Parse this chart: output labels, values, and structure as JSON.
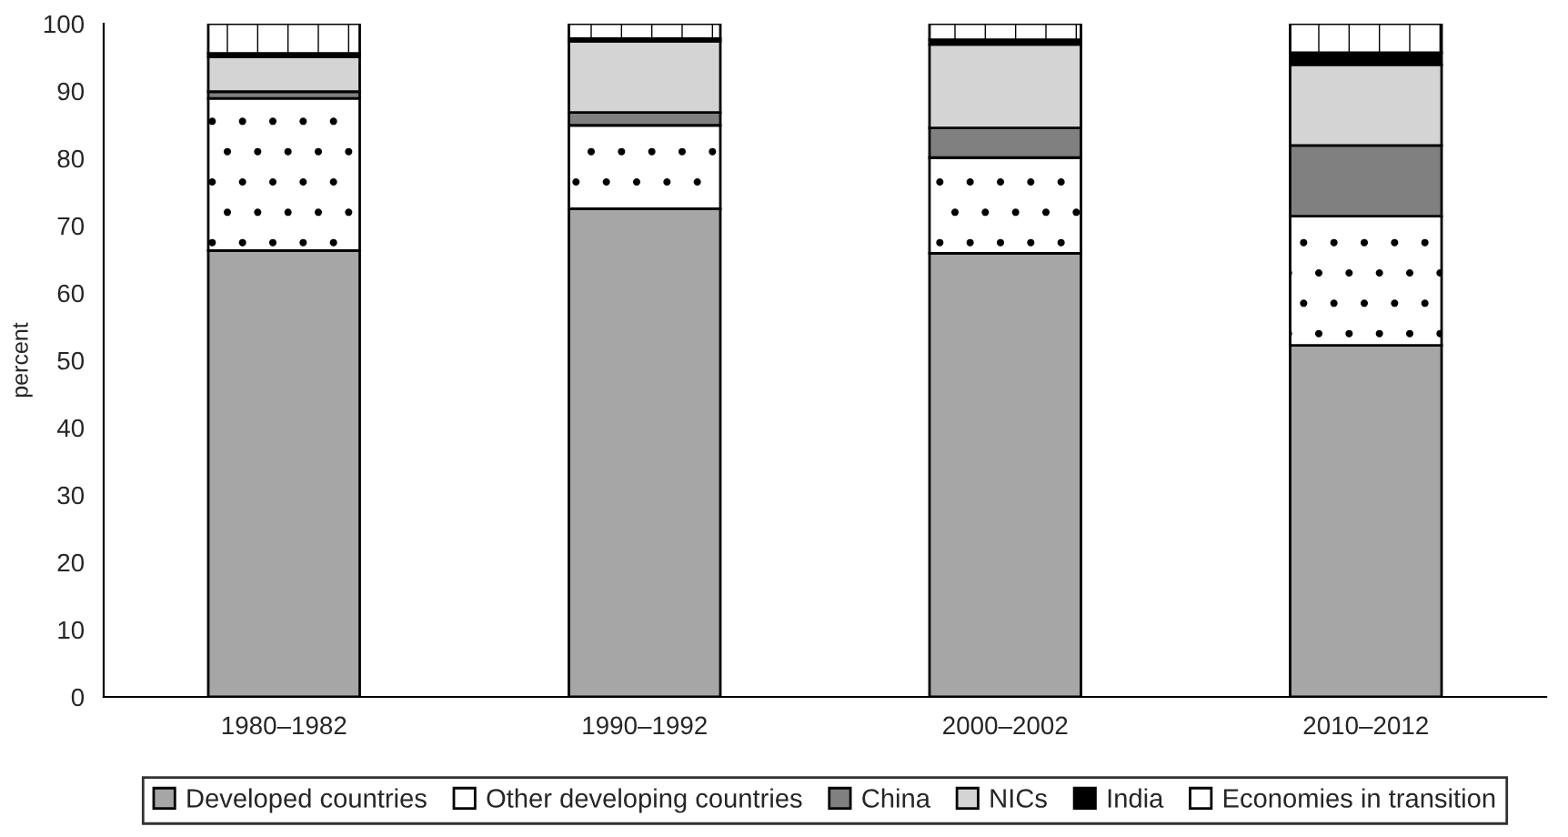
{
  "chart_data": {
    "type": "bar",
    "stacked": true,
    "ylabel": "percent",
    "categories": [
      "1980–1982",
      "1990–1992",
      "2000–2002",
      "2010–2012"
    ],
    "series": [
      {
        "name": "Developed countries",
        "color": "#a6a6a6",
        "values": [
          66.3,
          72.5,
          65.9,
          52.2
        ]
      },
      {
        "name": "Other developing countries",
        "color": "#ffffff",
        "values": [
          22.6,
          12.4,
          14.2,
          19.2
        ]
      },
      {
        "name": "China",
        "color": "#808080",
        "values": [
          1.0,
          1.9,
          4.4,
          10.5
        ]
      },
      {
        "name": "NICs",
        "color": "#d4d4d4",
        "values": [
          5.2,
          10.6,
          12.4,
          12.0
        ]
      },
      {
        "name": "India",
        "color": "#000000",
        "values": [
          0.5,
          0.4,
          0.7,
          1.8
        ]
      },
      {
        "name": "Economies in transition",
        "color": "#ffffff",
        "values": [
          4.4,
          2.2,
          2.4,
          4.3
        ]
      }
    ],
    "ylim": [
      0,
      100
    ],
    "yticks": [
      0,
      10,
      20,
      30,
      40,
      50,
      60,
      70,
      80,
      90,
      100
    ],
    "legend": "bottom",
    "grid": false
  }
}
